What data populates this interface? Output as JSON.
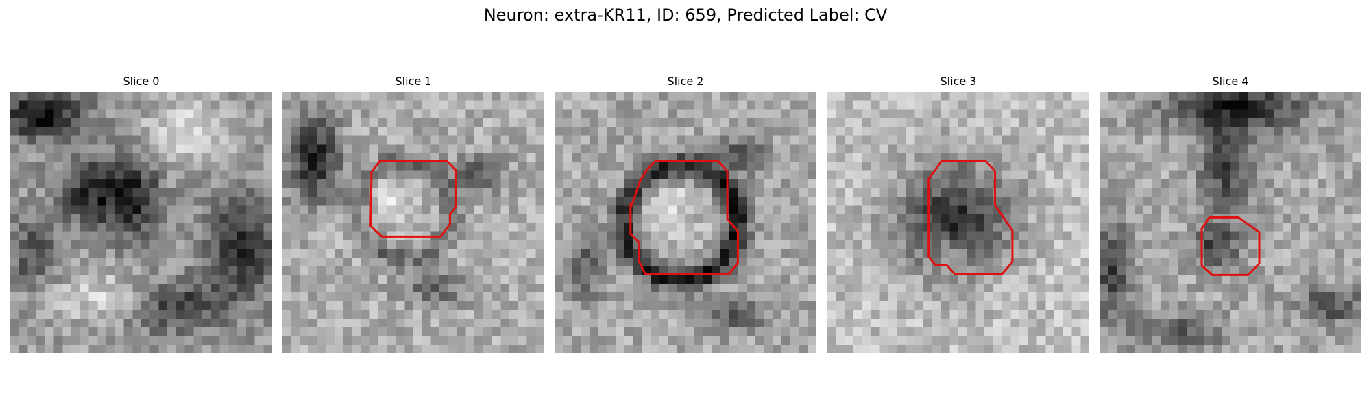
{
  "figure": {
    "title": "Neuron: extra-KR11, ID: 659, Predicted Label: CV",
    "image_alt": "Five grayscale electron-microscopy slices; slices 1 to 4 show a red contour outlining the same neuron"
  },
  "panels": [
    {
      "title": "Slice 0",
      "has_contour": false,
      "contour_color": "#e01010"
    },
    {
      "title": "Slice 1",
      "has_contour": true,
      "contour_color": "#e01010"
    },
    {
      "title": "Slice 2",
      "has_contour": true,
      "contour_color": "#e01010"
    },
    {
      "title": "Slice 3",
      "has_contour": true,
      "contour_color": "#e01010"
    },
    {
      "title": "Slice 4",
      "has_contour": true,
      "contour_color": "#e01010"
    }
  ],
  "colors": {
    "background": "#ffffff",
    "contour": "#e01010"
  }
}
